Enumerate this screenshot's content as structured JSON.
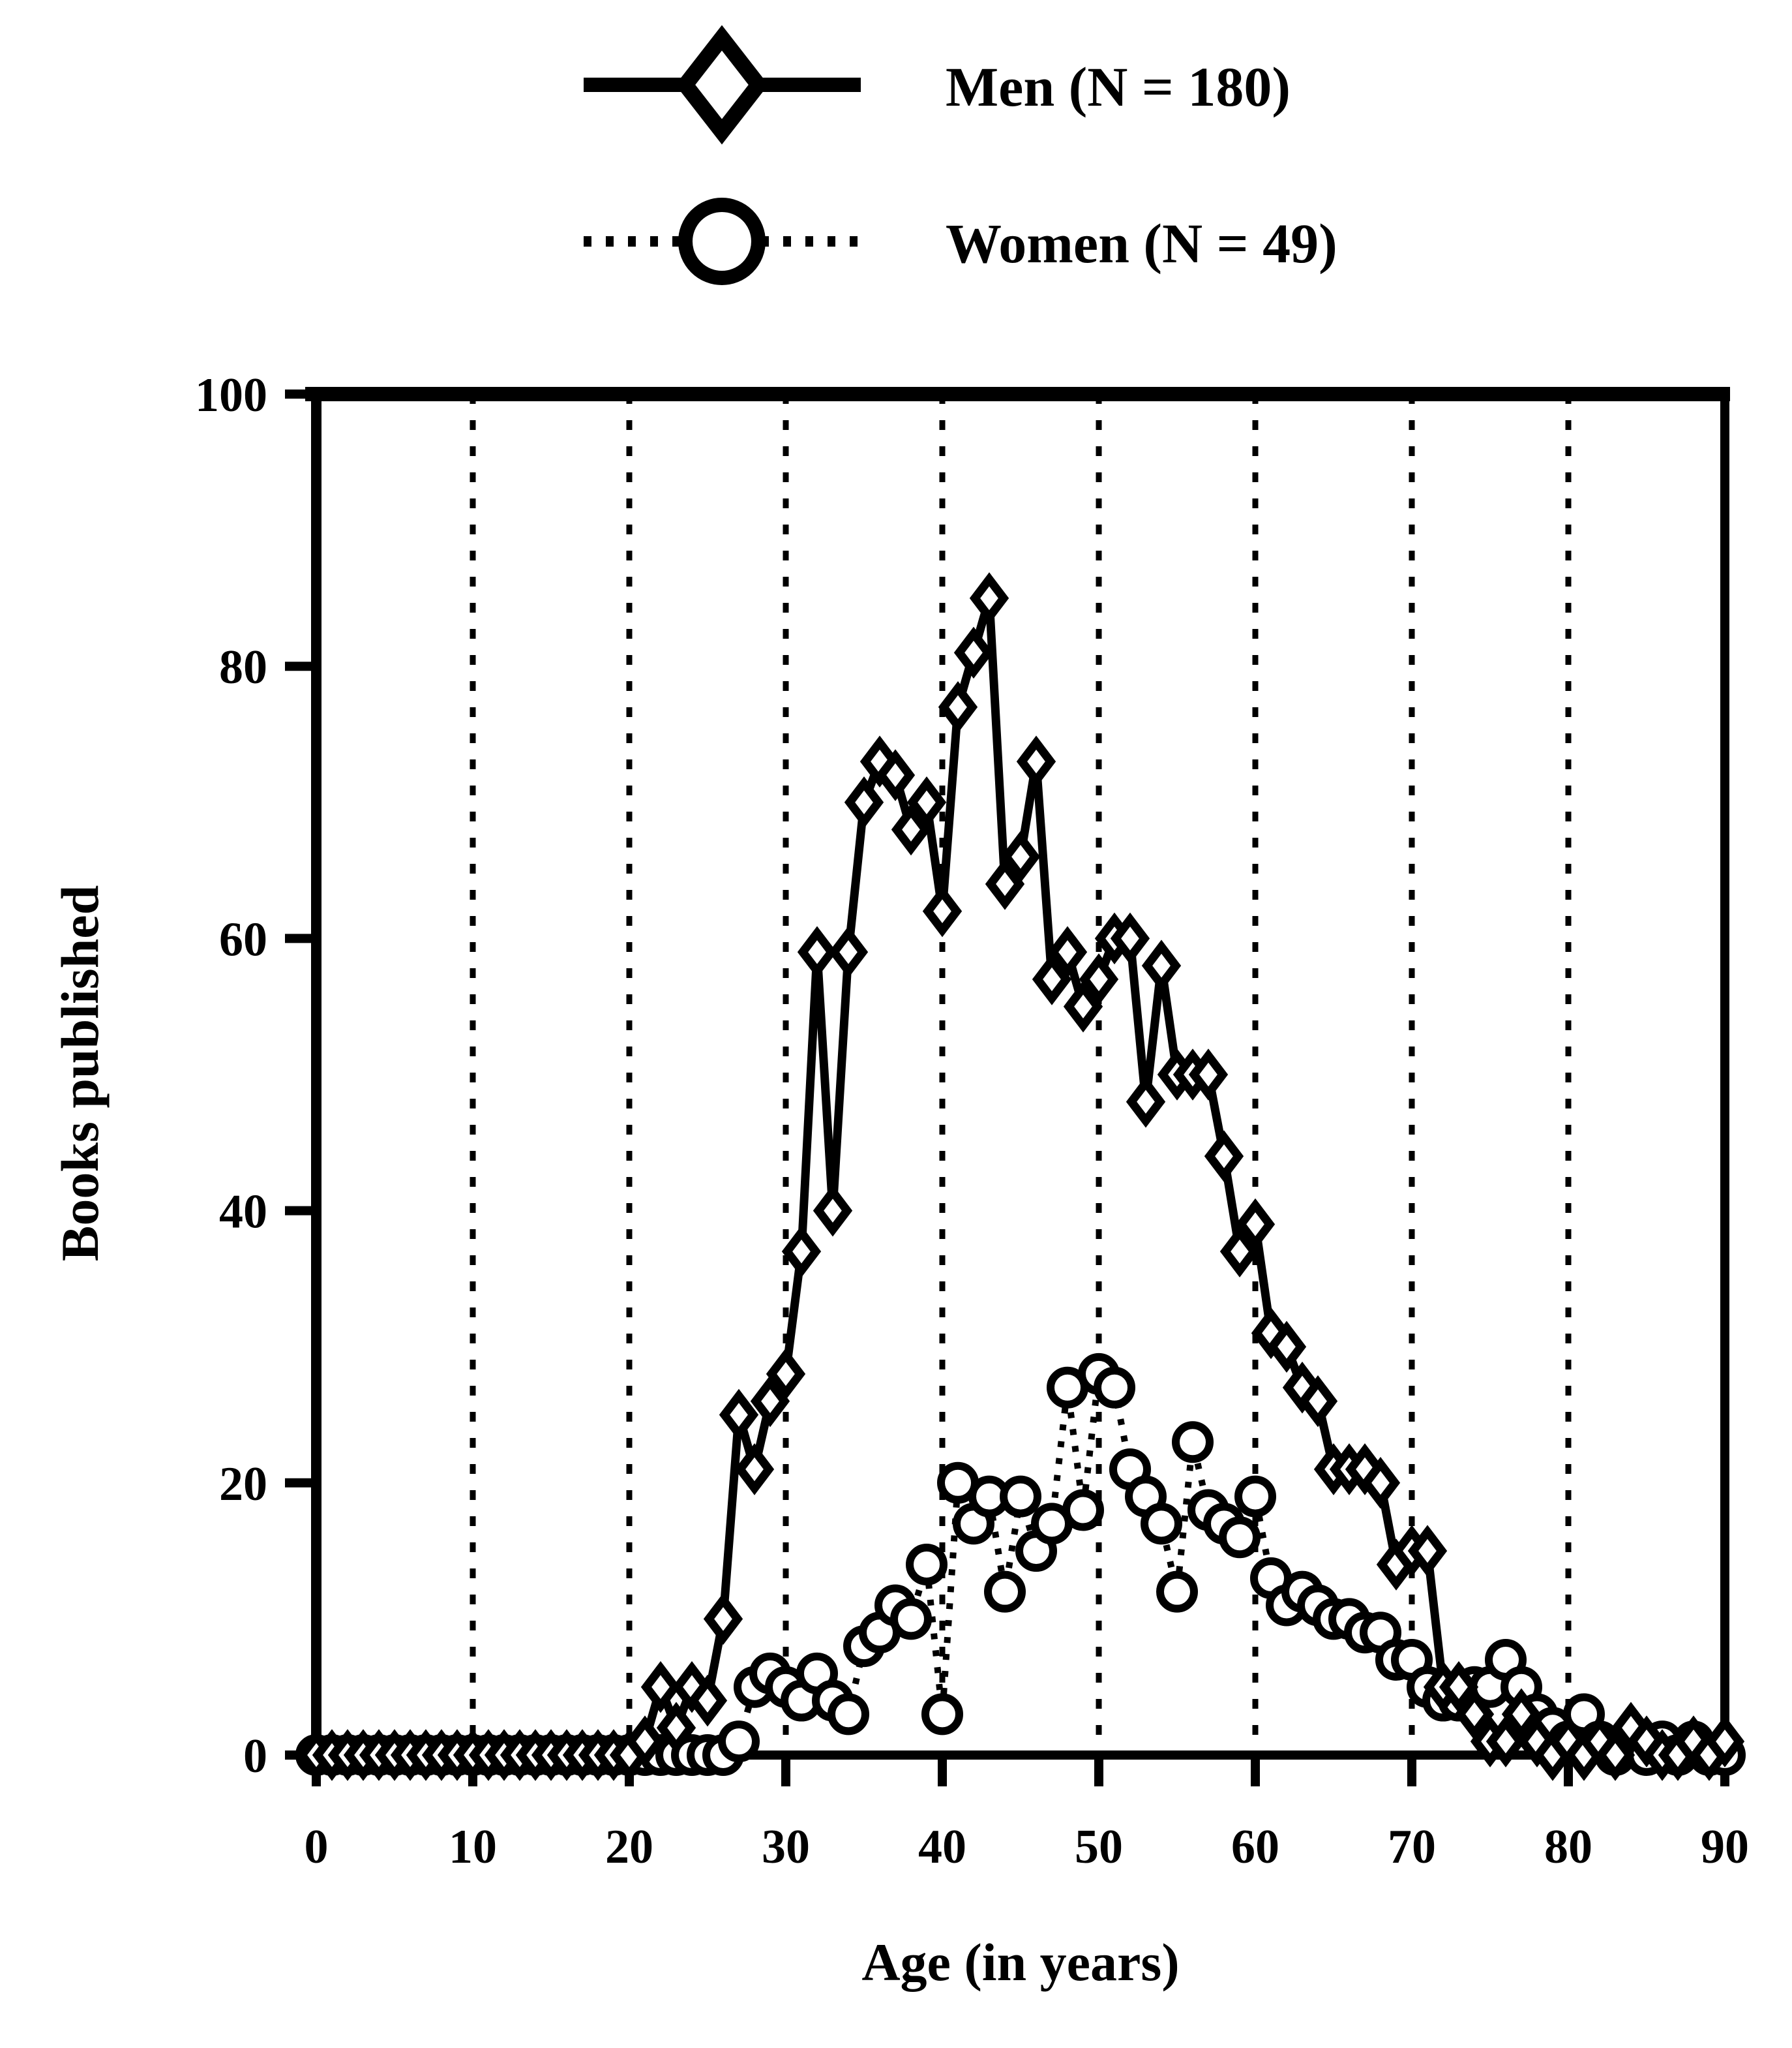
{
  "figure": {
    "background_color": "#ffffff",
    "ink_color": "#000000"
  },
  "legend": {
    "men": {
      "label": "Men (N = 180)",
      "marker": "diamond",
      "line_style": "solid"
    },
    "women": {
      "label": "Women (N = 49)",
      "marker": "circle",
      "line_style": "dotted"
    }
  },
  "axes": {
    "x": {
      "title": "Age (in years)",
      "min": 0,
      "max": 90,
      "tick_values": [
        0,
        10,
        20,
        30,
        40,
        50,
        60,
        70,
        80,
        90
      ],
      "gridline_values": [
        10,
        20,
        30,
        40,
        50,
        60,
        70,
        80
      ],
      "grid_style": "dotted-vertical"
    },
    "y": {
      "title": "Books published",
      "min": 0,
      "max": 100,
      "tick_values": [
        0,
        20,
        40,
        60,
        80,
        100
      ]
    }
  },
  "chart_data": {
    "type": "line",
    "title": "",
    "xlabel": "Age (in years)",
    "ylabel": "Books published",
    "x_min": 0,
    "x_max": 90,
    "x_step": 1,
    "x_note": "age equals array index, 0 through 90",
    "xlim": [
      0,
      90
    ],
    "ylim": [
      0,
      100
    ],
    "grid": "vertical dotted gridlines at ages 10-80",
    "legend_position": "above plot, top center",
    "series": [
      {
        "name": "Men (N = 180)",
        "marker": "diamond",
        "line": "solid",
        "values": [
          0,
          0,
          0,
          0,
          0,
          0,
          0,
          0,
          0,
          0,
          0,
          0,
          0,
          0,
          0,
          0,
          0,
          0,
          0,
          0,
          0,
          1,
          5,
          2,
          5,
          4,
          10,
          25,
          21,
          26,
          28,
          37,
          59,
          40,
          59,
          70,
          73,
          72,
          68,
          70,
          62,
          77,
          81,
          85,
          64,
          66,
          73,
          57,
          59,
          55,
          57,
          60,
          60,
          48,
          58,
          50,
          50,
          50,
          44,
          37,
          39,
          31,
          30,
          27,
          26,
          21,
          21,
          21,
          20,
          14,
          15,
          15,
          5,
          5,
          3,
          1,
          1,
          3,
          1,
          0,
          1,
          0,
          1,
          0,
          2,
          1,
          0,
          0,
          1,
          0,
          1
        ]
      },
      {
        "name": "Women (N = 49)",
        "marker": "circle",
        "line": "dotted",
        "values": [
          0,
          0,
          0,
          0,
          0,
          0,
          0,
          0,
          0,
          0,
          0,
          0,
          0,
          0,
          0,
          0,
          0,
          0,
          0,
          0,
          0,
          0,
          0,
          0,
          0,
          0,
          0,
          1,
          5,
          6,
          5,
          4,
          6,
          4,
          3,
          8,
          9,
          11,
          10,
          14,
          3,
          20,
          17,
          19,
          12,
          19,
          15,
          17,
          27,
          18,
          28,
          27,
          21,
          19,
          17,
          12,
          23,
          18,
          17,
          16,
          19,
          13,
          11,
          12,
          11,
          10,
          10,
          9,
          9,
          7,
          7,
          5,
          4,
          4,
          5,
          5,
          7,
          5,
          3,
          2,
          1,
          3,
          1,
          0,
          1,
          0,
          1,
          0,
          1,
          0,
          0
        ]
      }
    ]
  }
}
